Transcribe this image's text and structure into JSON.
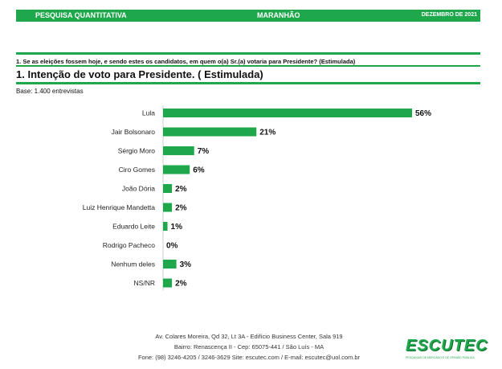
{
  "header": {
    "left": "PESQUISA QUANTITATIVA",
    "center": "MARANHÃO",
    "right": "DEZEMBRO DE 2021"
  },
  "question": "1. Se as eleições fossem hoje, e sendo estes os candidatos, em quem o(a) Sr.(a) votaria para Presidente? (Estimulada)",
  "title": "1. Intenção de voto para Presidente. ( Estimulada)",
  "base": "Base: 1.400 entrevistas",
  "colors": {
    "accent": "#1ea84b"
  },
  "chart_data": {
    "type": "bar",
    "orientation": "horizontal",
    "categories": [
      "Lula",
      "Jair Bolsonaro",
      "Sérgio Moro",
      "Ciro Gomes",
      "João Dória",
      "Luiz Henrique Mandetta",
      "Eduardo Leite",
      "Rodrigo Pacheco",
      "Nenhum deles",
      "NS/NR"
    ],
    "values": [
      56,
      21,
      7,
      6,
      2,
      2,
      1,
      0,
      3,
      2
    ],
    "value_labels": [
      "56%",
      "21%",
      "7%",
      "6%",
      "2%",
      "2%",
      "1%",
      "0%",
      "3%",
      "2%"
    ],
    "xlim": [
      0,
      56
    ],
    "grid": false,
    "bar_color": "#1ea84b"
  },
  "footer": {
    "line1": "Av. Colares Moreira, Qd 32, Lt 3A - Edifício Business Center, Sala 919",
    "line2": "Bairro: Renascença II - Cep: 65075-441 / São Luís - MA",
    "line3": "Fone: (98) 3246-4205 / 3246-3629 Site: escutec.com / E-mail: escutec@uol.com.br"
  },
  "logo": {
    "text": "ESCUTEC",
    "tagline": "PESQUISAS DE MERCADO E DE OPINIÃO PÚBLICA"
  }
}
